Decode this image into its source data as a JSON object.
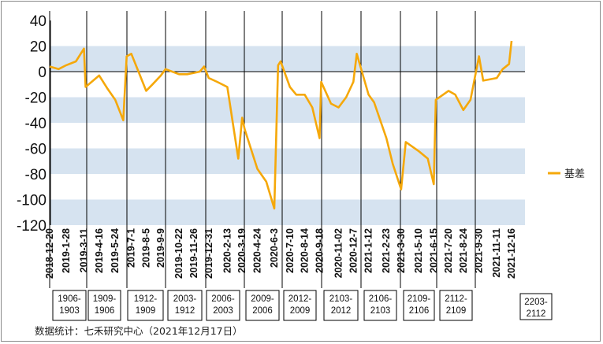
{
  "chart_data": {
    "type": "line",
    "title": "",
    "xlabel": "",
    "ylabel": "",
    "ylim": [
      -120,
      40
    ],
    "y_ticks": [
      40,
      20,
      0,
      -20,
      -40,
      -60,
      -80,
      -100,
      -120
    ],
    "grid": "alternating horizontal bands",
    "legend_position": "right",
    "x_tick_labels": [
      "2018-12-20",
      "2019-1-28",
      "2019-3-11",
      "2019-4-16",
      "2019-5-24",
      "2019-7-1",
      "2019-8-5",
      "2019-9-9",
      "2019-10-22",
      "2019-11-26",
      "2019-12-31",
      "2020-2-13",
      "2020-3-19",
      "2020-4-24",
      "2020-6-3",
      "2020-7-10",
      "2020-8-14",
      "2020-9-18",
      "2020-11-02",
      "2020-12-7",
      "2021-1-12",
      "2021-2-23",
      "2021-3-30",
      "2021-5-10",
      "2021-6-15",
      "2021-7-20",
      "2021-8-24",
      "2021-9-30",
      "2021-11-11",
      "2021-12-16"
    ],
    "contract_labels": [
      [
        "1906-",
        "1903"
      ],
      [
        "1909-",
        "1906"
      ],
      [
        "1912-",
        "1909"
      ],
      [
        "2003-",
        "1912"
      ],
      [
        "2006-",
        "2003"
      ],
      [
        "2009-",
        "2006"
      ],
      [
        "2012-",
        "2009"
      ],
      [
        "2103-",
        "2012"
      ],
      [
        "2106-",
        "2103"
      ],
      [
        "2109-",
        "2106"
      ],
      [
        "2112-",
        "2109"
      ],
      [
        "2203-",
        "2112"
      ]
    ],
    "series": [
      {
        "name": "基差",
        "color": "#F5A80A",
        "x": [
          "2018-12-20",
          "2019-1-10",
          "2019-1-28",
          "2019-2-20",
          "2019-3-11",
          "2019-3-15",
          "2019-4-16",
          "2019-5-5",
          "2019-5-24",
          "2019-6-12",
          "2019-6-20",
          "2019-7-1",
          "2019-7-18",
          "2019-8-5",
          "2019-8-20",
          "2019-9-9",
          "2019-9-20",
          "2019-10-22",
          "2019-11-10",
          "2019-11-26",
          "2019-12-10",
          "2019-12-20",
          "2019-12-31",
          "2020-1-20",
          "2020-2-13",
          "2020-3-10",
          "2020-3-19",
          "2020-3-25",
          "2020-4-24",
          "2020-5-15",
          "2020-6-3",
          "2020-6-12",
          "2020-6-18",
          "2020-7-10",
          "2020-7-25",
          "2020-8-14",
          "2020-9-1",
          "2020-9-18",
          "2020-9-22",
          "2020-10-15",
          "2020-11-02",
          "2020-11-20",
          "2020-12-7",
          "2020-12-15",
          "2021-1-12",
          "2021-1-25",
          "2021-2-23",
          "2021-3-10",
          "2021-3-30",
          "2021-4-10",
          "2021-5-10",
          "2021-6-1",
          "2021-6-15",
          "2021-6-20",
          "2021-7-20",
          "2021-8-5",
          "2021-8-24",
          "2021-9-10",
          "2021-9-20",
          "2021-9-30",
          "2021-10-10",
          "2021-11-11",
          "2021-11-25",
          "2021-12-10",
          "2021-12-16"
        ],
        "values": [
          4,
          2,
          5,
          8,
          18,
          -12,
          -3,
          -13,
          -22,
          -38,
          12,
          14,
          0,
          -15,
          -10,
          -3,
          2,
          -2,
          -2,
          -1,
          0,
          4,
          -5,
          -8,
          -12,
          -68,
          -36,
          -45,
          -76,
          -86,
          -107,
          5,
          8,
          -12,
          -18,
          -18,
          -28,
          -52,
          -8,
          -25,
          -28,
          -20,
          -8,
          14,
          -18,
          -24,
          -52,
          -72,
          -92,
          -55,
          -62,
          -68,
          -88,
          -22,
          -15,
          -18,
          -30,
          -22,
          -5,
          12,
          -7,
          -5,
          2,
          6,
          24
        ]
      }
    ]
  },
  "source_text": "数据统计：七禾研究中心（2021年12月17日）"
}
